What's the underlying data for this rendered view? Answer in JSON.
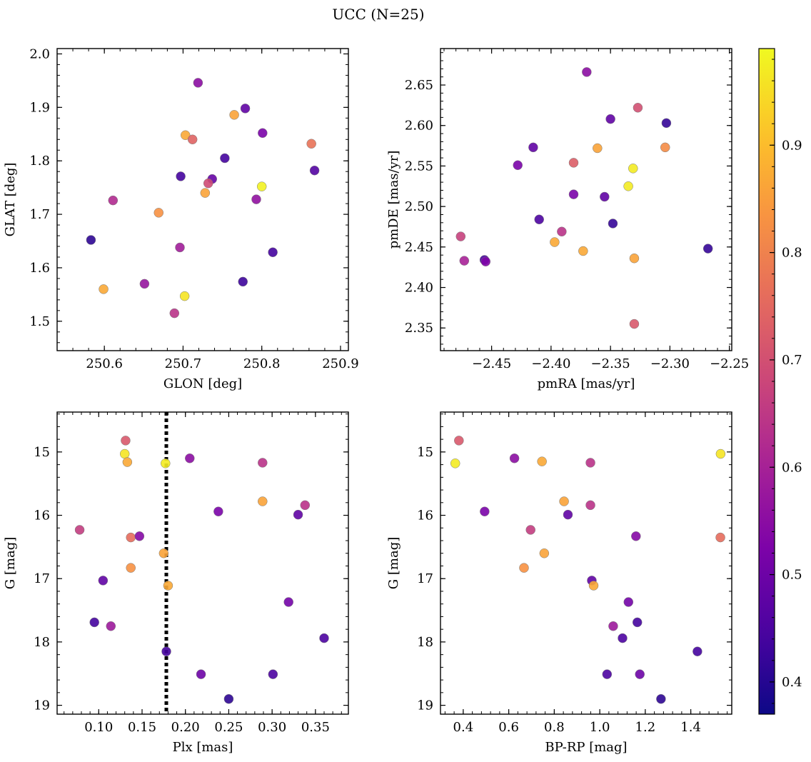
{
  "title": "UCC (N=25)",
  "colorbar": {
    "range": [
      0.37,
      0.99
    ],
    "ticks": [
      0.4,
      0.5,
      0.6,
      0.7,
      0.8,
      0.9
    ],
    "tick_labels": [
      "0.4",
      "0.5",
      "0.6",
      "0.7",
      "0.8",
      "0.9"
    ],
    "colormap": "plasma"
  },
  "chart_data": [
    {
      "type": "scatter",
      "name": "glon-glat",
      "xlabel": "GLON [deg]",
      "ylabel": "GLAT [deg]",
      "xlim": [
        250.54,
        250.91
      ],
      "ylim": [
        1.445,
        2.01
      ],
      "xticks": [
        250.6,
        250.7,
        250.8,
        250.9
      ],
      "xtick_labels": [
        "250.6",
        "250.7",
        "250.8",
        "250.9"
      ],
      "xminor": 0.02,
      "yticks": [
        1.5,
        1.6,
        1.7,
        1.8,
        1.9,
        2.0
      ],
      "ytick_labels": [
        "1.5",
        "1.6",
        "1.7",
        "1.8",
        "1.9",
        "2.0"
      ],
      "yminor": 0.02,
      "points": [
        {
          "x": 250.719,
          "y": 1.946,
          "c": 0.55
        },
        {
          "x": 250.779,
          "y": 1.898,
          "c": 0.48
        },
        {
          "x": 250.765,
          "y": 1.886,
          "c": 0.86
        },
        {
          "x": 250.801,
          "y": 1.852,
          "c": 0.52
        },
        {
          "x": 250.703,
          "y": 1.848,
          "c": 0.87
        },
        {
          "x": 250.712,
          "y": 1.84,
          "c": 0.74
        },
        {
          "x": 250.863,
          "y": 1.832,
          "c": 0.77
        },
        {
          "x": 250.753,
          "y": 1.805,
          "c": 0.44
        },
        {
          "x": 250.867,
          "y": 1.782,
          "c": 0.46
        },
        {
          "x": 250.697,
          "y": 1.771,
          "c": 0.44
        },
        {
          "x": 250.737,
          "y": 1.766,
          "c": 0.49
        },
        {
          "x": 250.732,
          "y": 1.758,
          "c": 0.69
        },
        {
          "x": 250.8,
          "y": 1.752,
          "c": 0.98
        },
        {
          "x": 250.728,
          "y": 1.74,
          "c": 0.86
        },
        {
          "x": 250.793,
          "y": 1.728,
          "c": 0.56
        },
        {
          "x": 250.611,
          "y": 1.726,
          "c": 0.62
        },
        {
          "x": 250.669,
          "y": 1.703,
          "c": 0.83
        },
        {
          "x": 250.583,
          "y": 1.652,
          "c": 0.41
        },
        {
          "x": 250.696,
          "y": 1.638,
          "c": 0.59
        },
        {
          "x": 250.814,
          "y": 1.629,
          "c": 0.44
        },
        {
          "x": 250.776,
          "y": 1.574,
          "c": 0.43
        },
        {
          "x": 250.651,
          "y": 1.57,
          "c": 0.57
        },
        {
          "x": 250.599,
          "y": 1.56,
          "c": 0.87
        },
        {
          "x": 250.702,
          "y": 1.547,
          "c": 0.96
        },
        {
          "x": 250.689,
          "y": 1.515,
          "c": 0.64
        }
      ]
    },
    {
      "type": "scatter",
      "name": "pmra-pmde",
      "xlabel": "pmRA [mas/yr]",
      "ylabel": "pmDE [mas/yr]",
      "xlim": [
        -2.493,
        -2.248
      ],
      "ylim": [
        2.322,
        2.695
      ],
      "xticks": [
        -2.45,
        -2.4,
        -2.35,
        -2.3,
        -2.25
      ],
      "xtick_labels": [
        "−2.45",
        "−2.40",
        "−2.35",
        "−2.30",
        "−2.25"
      ],
      "xminor": 0.01,
      "yticks": [
        2.35,
        2.4,
        2.45,
        2.5,
        2.55,
        2.6,
        2.65
      ],
      "ytick_labels": [
        "2.35",
        "2.40",
        "2.45",
        "2.50",
        "2.55",
        "2.60",
        "2.65"
      ],
      "yminor": 0.01,
      "points": [
        {
          "x": -2.37,
          "y": 2.666,
          "c": 0.55
        },
        {
          "x": -2.327,
          "y": 2.622,
          "c": 0.7
        },
        {
          "x": -2.35,
          "y": 2.608,
          "c": 0.48
        },
        {
          "x": -2.303,
          "y": 2.603,
          "c": 0.42
        },
        {
          "x": -2.415,
          "y": 2.573,
          "c": 0.48
        },
        {
          "x": -2.361,
          "y": 2.572,
          "c": 0.86
        },
        {
          "x": -2.304,
          "y": 2.573,
          "c": 0.82
        },
        {
          "x": -2.381,
          "y": 2.554,
          "c": 0.73
        },
        {
          "x": -2.428,
          "y": 2.551,
          "c": 0.52
        },
        {
          "x": -2.331,
          "y": 2.547,
          "c": 0.97
        },
        {
          "x": -2.335,
          "y": 2.525,
          "c": 0.97
        },
        {
          "x": -2.381,
          "y": 2.515,
          "c": 0.52
        },
        {
          "x": -2.355,
          "y": 2.512,
          "c": 0.48
        },
        {
          "x": -2.41,
          "y": 2.484,
          "c": 0.45
        },
        {
          "x": -2.348,
          "y": 2.479,
          "c": 0.42
        },
        {
          "x": -2.391,
          "y": 2.469,
          "c": 0.64
        },
        {
          "x": -2.476,
          "y": 2.463,
          "c": 0.67
        },
        {
          "x": -2.397,
          "y": 2.456,
          "c": 0.87
        },
        {
          "x": -2.268,
          "y": 2.448,
          "c": 0.42
        },
        {
          "x": -2.373,
          "y": 2.445,
          "c": 0.87
        },
        {
          "x": -2.33,
          "y": 2.436,
          "c": 0.86
        },
        {
          "x": -2.456,
          "y": 2.434,
          "c": 0.44
        },
        {
          "x": -2.473,
          "y": 2.433,
          "c": 0.6
        },
        {
          "x": -2.455,
          "y": 2.432,
          "c": 0.53
        },
        {
          "x": -2.33,
          "y": 2.355,
          "c": 0.72
        }
      ]
    },
    {
      "type": "scatter",
      "name": "plx-g",
      "xlabel": "Plx [mas]",
      "ylabel": "G [mag]",
      "xlim": [
        0.052,
        0.388
      ],
      "ylim": [
        19.14,
        14.37
      ],
      "yinverted": true,
      "xticks": [
        0.1,
        0.15,
        0.2,
        0.25,
        0.3,
        0.35
      ],
      "xtick_labels": [
        "0.10",
        "0.15",
        "0.20",
        "0.25",
        "0.30",
        "0.35"
      ],
      "xminor": 0.01,
      "yticks": [
        15,
        16,
        17,
        18,
        19
      ],
      "ytick_labels": [
        "15",
        "16",
        "17",
        "18",
        "19"
      ],
      "yminor": 0.2,
      "vline": {
        "x": 0.178,
        "style": "dotted",
        "color": "#000000"
      },
      "points": [
        {
          "x": 0.131,
          "y": 14.82,
          "c": 0.72
        },
        {
          "x": 0.13,
          "y": 15.03,
          "c": 0.96
        },
        {
          "x": 0.133,
          "y": 15.16,
          "c": 0.87
        },
        {
          "x": 0.177,
          "y": 15.18,
          "c": 0.97
        },
        {
          "x": 0.205,
          "y": 15.1,
          "c": 0.55
        },
        {
          "x": 0.289,
          "y": 15.17,
          "c": 0.64
        },
        {
          "x": 0.289,
          "y": 15.78,
          "c": 0.86
        },
        {
          "x": 0.338,
          "y": 15.84,
          "c": 0.64
        },
        {
          "x": 0.238,
          "y": 15.94,
          "c": 0.52
        },
        {
          "x": 0.33,
          "y": 15.99,
          "c": 0.48
        },
        {
          "x": 0.078,
          "y": 16.23,
          "c": 0.66
        },
        {
          "x": 0.137,
          "y": 16.35,
          "c": 0.76
        },
        {
          "x": 0.147,
          "y": 16.33,
          "c": 0.54
        },
        {
          "x": 0.175,
          "y": 16.6,
          "c": 0.86
        },
        {
          "x": 0.137,
          "y": 16.83,
          "c": 0.83
        },
        {
          "x": 0.105,
          "y": 17.03,
          "c": 0.48
        },
        {
          "x": 0.18,
          "y": 17.11,
          "c": 0.87
        },
        {
          "x": 0.319,
          "y": 17.37,
          "c": 0.51
        },
        {
          "x": 0.095,
          "y": 17.69,
          "c": 0.44
        },
        {
          "x": 0.114,
          "y": 17.75,
          "c": 0.58
        },
        {
          "x": 0.36,
          "y": 17.94,
          "c": 0.45
        },
        {
          "x": 0.178,
          "y": 18.15,
          "c": 0.44
        },
        {
          "x": 0.218,
          "y": 18.51,
          "c": 0.5
        },
        {
          "x": 0.301,
          "y": 18.51,
          "c": 0.45
        },
        {
          "x": 0.25,
          "y": 18.9,
          "c": 0.41
        }
      ]
    },
    {
      "type": "scatter",
      "name": "bprp-g",
      "xlabel": "BP-RP [mag]",
      "ylabel": "G [mag]",
      "xlim": [
        0.3,
        1.58
      ],
      "ylim": [
        19.14,
        14.37
      ],
      "yinverted": true,
      "xticks": [
        0.4,
        0.6,
        0.8,
        1.0,
        1.2,
        1.4
      ],
      "xtick_labels": [
        "0.4",
        "0.6",
        "0.8",
        "1.0",
        "1.2",
        "1.4"
      ],
      "xminor": 0.04,
      "yticks": [
        15,
        16,
        17,
        18,
        19
      ],
      "ytick_labels": [
        "15",
        "16",
        "17",
        "18",
        "19"
      ],
      "yminor": 0.2,
      "points": [
        {
          "x": 0.381,
          "y": 14.82,
          "c": 0.72
        },
        {
          "x": 1.531,
          "y": 15.03,
          "c": 0.96
        },
        {
          "x": 0.365,
          "y": 15.18,
          "c": 0.97
        },
        {
          "x": 0.625,
          "y": 15.1,
          "c": 0.55
        },
        {
          "x": 0.746,
          "y": 15.15,
          "c": 0.87
        },
        {
          "x": 0.959,
          "y": 15.17,
          "c": 0.64
        },
        {
          "x": 0.843,
          "y": 15.78,
          "c": 0.86
        },
        {
          "x": 0.959,
          "y": 15.84,
          "c": 0.64
        },
        {
          "x": 0.494,
          "y": 15.94,
          "c": 0.52
        },
        {
          "x": 0.86,
          "y": 15.99,
          "c": 0.48
        },
        {
          "x": 0.696,
          "y": 16.23,
          "c": 0.66
        },
        {
          "x": 1.159,
          "y": 16.33,
          "c": 0.54
        },
        {
          "x": 1.53,
          "y": 16.35,
          "c": 0.76
        },
        {
          "x": 0.756,
          "y": 16.6,
          "c": 0.86
        },
        {
          "x": 0.667,
          "y": 16.83,
          "c": 0.83
        },
        {
          "x": 0.965,
          "y": 17.03,
          "c": 0.48
        },
        {
          "x": 0.973,
          "y": 17.11,
          "c": 0.87
        },
        {
          "x": 1.126,
          "y": 17.37,
          "c": 0.51
        },
        {
          "x": 1.165,
          "y": 17.69,
          "c": 0.44
        },
        {
          "x": 1.059,
          "y": 17.75,
          "c": 0.58
        },
        {
          "x": 1.1,
          "y": 17.94,
          "c": 0.45
        },
        {
          "x": 1.429,
          "y": 18.15,
          "c": 0.44
        },
        {
          "x": 1.032,
          "y": 18.51,
          "c": 0.45
        },
        {
          "x": 1.176,
          "y": 18.51,
          "c": 0.5
        },
        {
          "x": 1.269,
          "y": 18.9,
          "c": 0.41
        }
      ]
    }
  ]
}
